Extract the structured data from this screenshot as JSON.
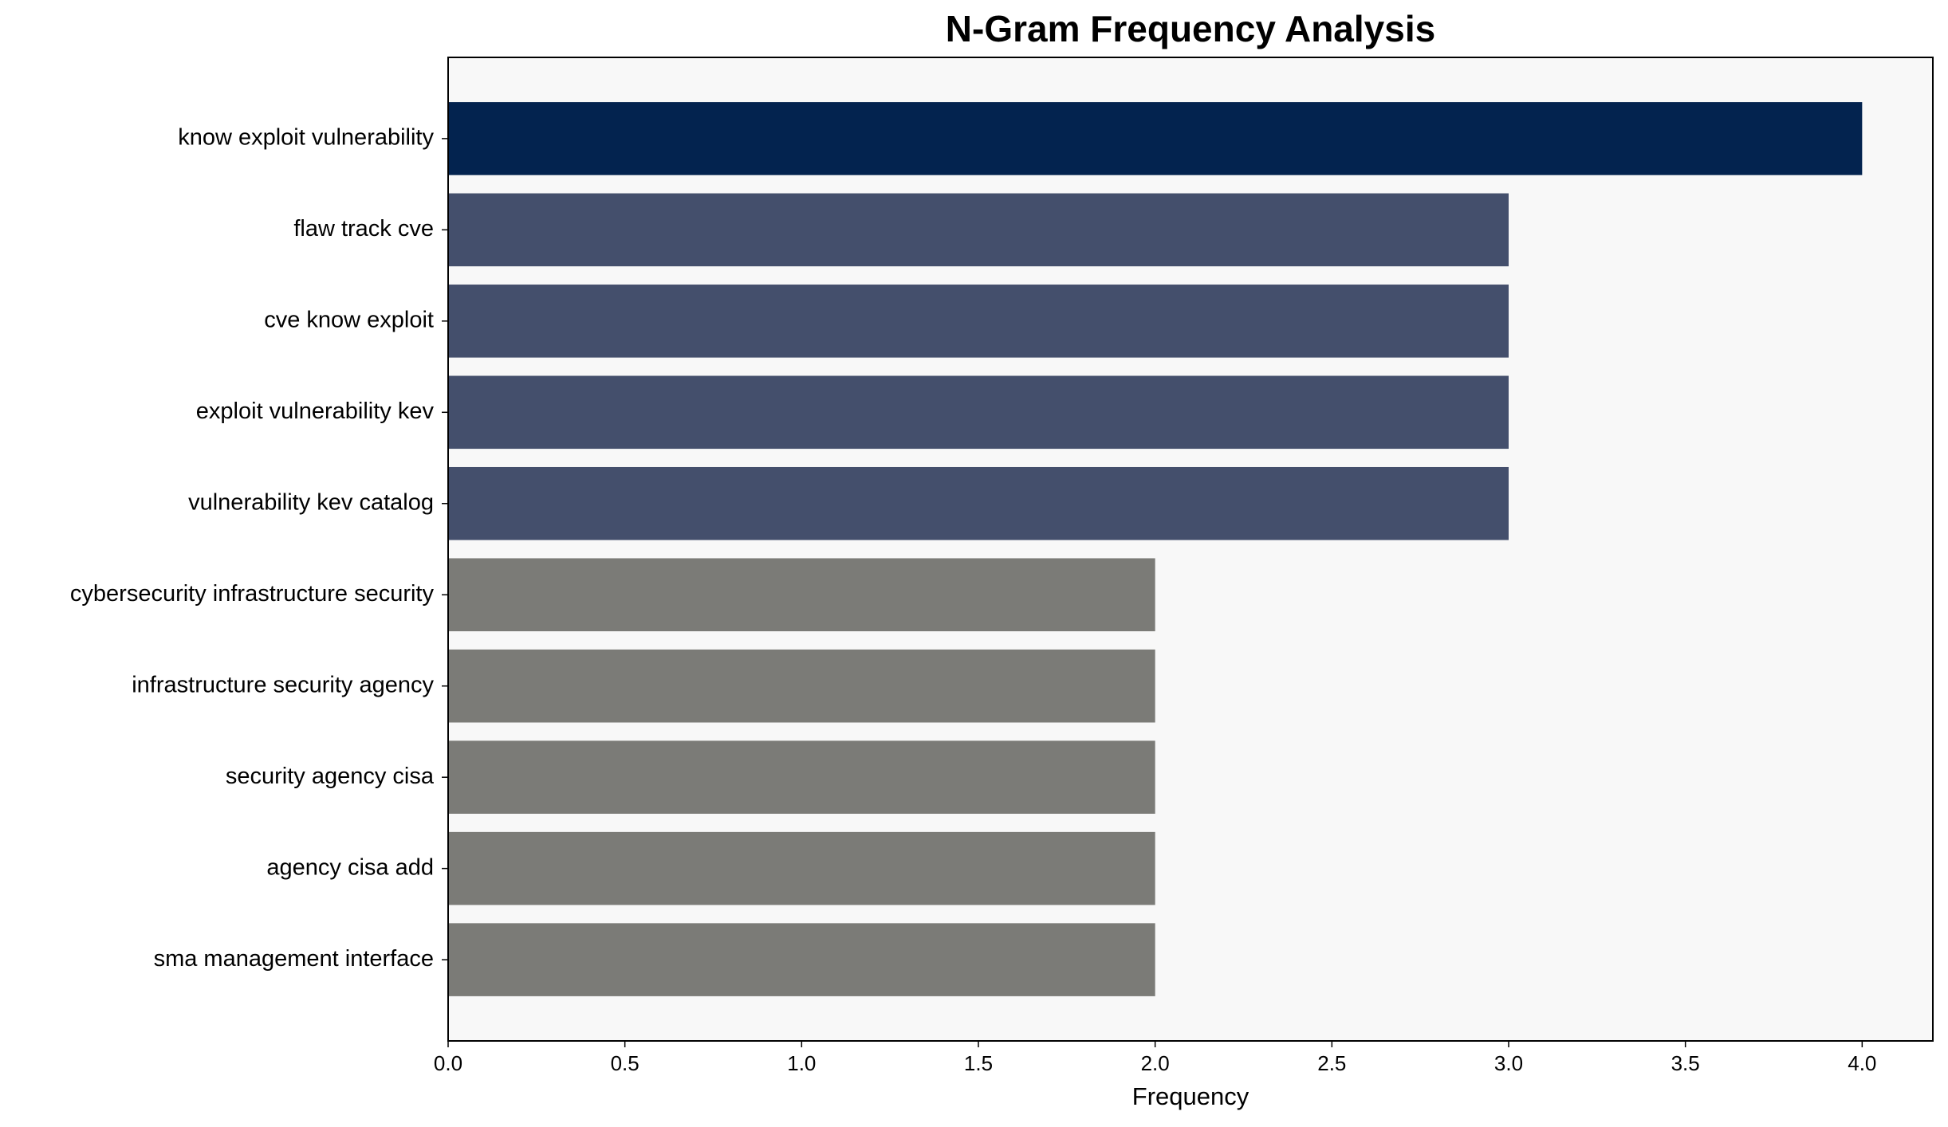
{
  "chart_data": {
    "type": "barh",
    "title": "N-Gram Frequency Analysis",
    "x_label": "Frequency",
    "categories": [
      "know exploit vulnerability",
      "flaw track cve",
      "cve know exploit",
      "exploit vulnerability kev",
      "vulnerability kev catalog",
      "cybersecurity infrastructure security",
      "infrastructure security agency",
      "security agency cisa",
      "agency cisa add",
      "sma management interface"
    ],
    "values": [
      4,
      3,
      3,
      3,
      3,
      2,
      2,
      2,
      2,
      2
    ],
    "colors": [
      "#03234f",
      "#444f6c",
      "#444f6c",
      "#444f6c",
      "#444f6c",
      "#7b7b77",
      "#7b7b77",
      "#7b7b77",
      "#7b7b77",
      "#7b7b77"
    ],
    "xlim": [
      0,
      4.2
    ],
    "xticks": [
      {
        "value": 0,
        "label": "0.0"
      },
      {
        "value": 0.5,
        "label": "0.5"
      },
      {
        "value": 1,
        "label": "1.0"
      },
      {
        "value": 1.5,
        "label": "1.5"
      },
      {
        "value": 2,
        "label": "2.0"
      },
      {
        "value": 2.5,
        "label": "2.5"
      },
      {
        "value": 3,
        "label": "3.0"
      },
      {
        "value": 3.5,
        "label": "3.5"
      },
      {
        "value": 4,
        "label": "4.0"
      }
    ],
    "grid": false
  }
}
